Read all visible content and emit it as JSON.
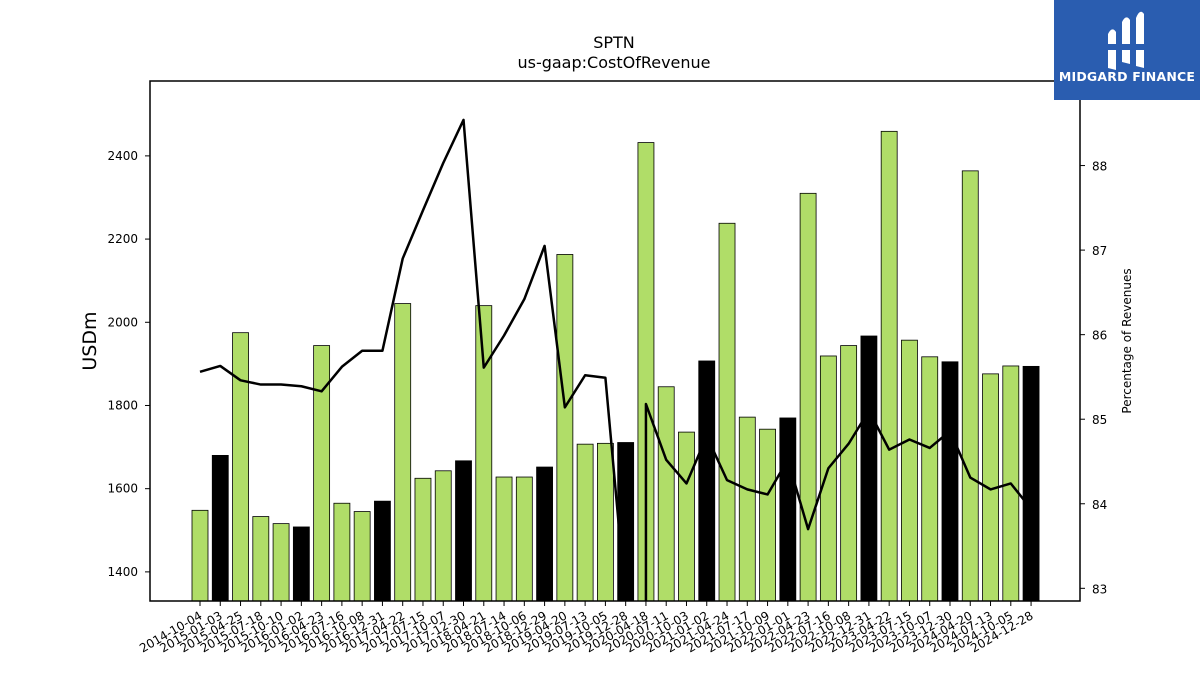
{
  "logo": {
    "text": "MIDGARD FINANCE"
  },
  "chart_data": {
    "type": "bar",
    "title": "SPTN",
    "subtitle": "us-gaap:CostOfRevenue",
    "ylabel": "USDm",
    "y2label": "Percentage of Revenues",
    "ylim": [
      1330,
      2580
    ],
    "y2lim": [
      82.85,
      89.0
    ],
    "yticks": [
      1400,
      1600,
      1800,
      2000,
      2200,
      2400
    ],
    "y2ticks": [
      83,
      84,
      85,
      86,
      87,
      88
    ],
    "colors": {
      "quarter": "#b0dd68",
      "annual": "#000000",
      "line": "#000000"
    },
    "categories": [
      "2014-10-04",
      "2015-01-03",
      "2015-04-25",
      "2015-07-18",
      "2015-10-10",
      "2016-01-02",
      "2016-04-23",
      "2016-07-16",
      "2016-10-08",
      "2016-12-31",
      "2017-04-22",
      "2017-07-15",
      "2017-10-07",
      "2017-12-30",
      "2018-04-21",
      "2018-07-14",
      "2018-10-06",
      "2018-12-29",
      "2019-04-20",
      "2019-07-13",
      "2019-10-05",
      "2019-12-28",
      "2020-04-18",
      "2020-07-11",
      "2020-10-03",
      "2021-01-02",
      "2021-04-24",
      "2021-07-17",
      "2021-10-09",
      "2022-01-01",
      "2022-04-23",
      "2022-07-16",
      "2022-10-08",
      "2022-12-31",
      "2023-04-22",
      "2023-07-15",
      "2023-10-07",
      "2023-12-30",
      "2024-04-20",
      "2024-07-13",
      "2024-10-05",
      "2024-12-28"
    ],
    "series": [
      {
        "name": "",
        "kind": "bar",
        "values": [
          1548,
          1680,
          1975,
          1533,
          1516,
          1508,
          1944,
          1565,
          1545,
          1570,
          2045,
          1625,
          1643,
          1667,
          2040,
          1628,
          1628,
          1652,
          2163,
          1707,
          1709,
          1711,
          2432,
          1845,
          1736,
          1907,
          2238,
          1772,
          1743,
          1770,
          2310,
          1919,
          1944,
          1967,
          2459,
          1957,
          1917,
          1905,
          2364,
          1876,
          1895,
          1894
        ],
        "annual": [
          false,
          true,
          false,
          false,
          false,
          true,
          false,
          false,
          false,
          true,
          false,
          false,
          false,
          true,
          false,
          false,
          false,
          true,
          false,
          false,
          false,
          true,
          false,
          false,
          false,
          true,
          false,
          false,
          false,
          true,
          false,
          false,
          false,
          true,
          false,
          false,
          false,
          true,
          false,
          false,
          false,
          true
        ]
      },
      {
        "name": "",
        "kind": "line",
        "axis": "right",
        "values": [
          85.56,
          85.63,
          85.46,
          85.41,
          85.41,
          85.39,
          85.33,
          85.62,
          85.81,
          85.81,
          86.9,
          87.47,
          88.03,
          88.54,
          85.61,
          85.99,
          86.42,
          87.05,
          85.14,
          85.52,
          85.49,
          null,
          85.18,
          84.52,
          84.24,
          84.8,
          84.28,
          84.17,
          84.11,
          84.52,
          83.7,
          84.42,
          84.71,
          85.1,
          84.64,
          84.76,
          84.66,
          84.86,
          84.31,
          84.17,
          84.24,
          83.94
        ]
      }
    ]
  }
}
